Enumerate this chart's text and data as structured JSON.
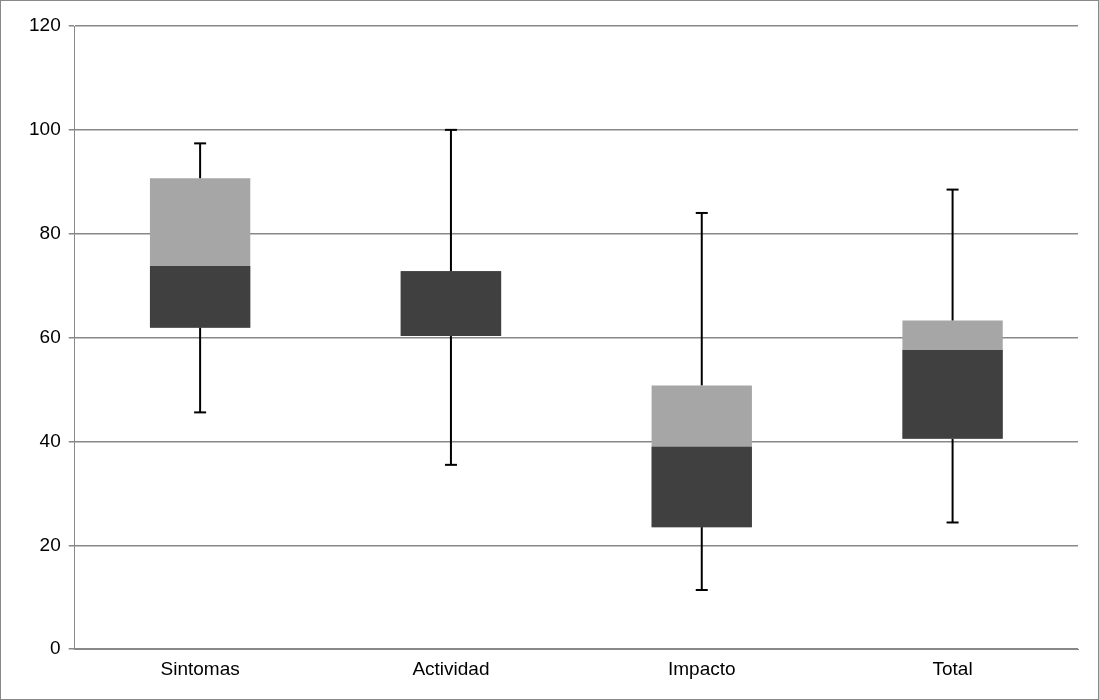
{
  "chart_data": {
    "type": "box",
    "categories": [
      "Sintomas",
      "Actividad",
      "Impacto",
      "Total"
    ],
    "boxes": [
      {
        "low": 45.6,
        "q1": 61.9,
        "median": 73.8,
        "q3": 90.7,
        "high": 97.4
      },
      {
        "low": 35.5,
        "q1": 60.3,
        "median": 72.8,
        "q3": 72.8,
        "high": 100
      },
      {
        "low": 11.4,
        "q1": 23.5,
        "median": 39.0,
        "q3": 50.8,
        "high": 84.0
      },
      {
        "low": 24.4,
        "q1": 40.5,
        "median": 57.6,
        "q3": 63.3,
        "high": 88.5
      }
    ],
    "color": "#404040",
    "colors": [
      "#a6a6a6",
      "#404040",
      "#a6a6a6",
      "#a6a6a6"
    ],
    "ylim": [
      0,
      120
    ],
    "yticks": [
      0,
      20,
      40,
      60,
      80,
      100,
      120
    ],
    "grid": "y",
    "legend": false
  }
}
